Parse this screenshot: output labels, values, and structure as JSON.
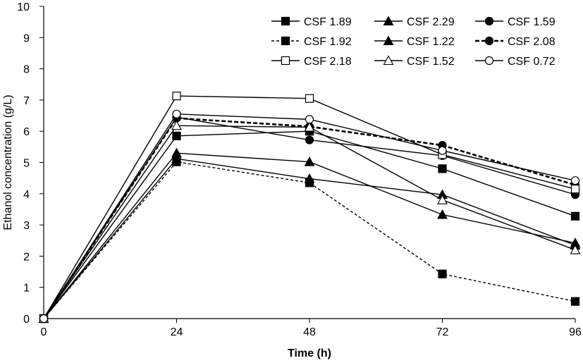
{
  "chart_data": {
    "type": "line",
    "xlabel": "Time (h)",
    "ylabel": "Ethanol concentration (g/L)",
    "xlim": [
      0,
      96
    ],
    "ylim": [
      0,
      10
    ],
    "x": [
      0,
      24,
      48,
      72,
      96
    ],
    "xticks": [
      "0",
      "24",
      "48",
      "72",
      "96"
    ],
    "yticks": [
      "0",
      "1",
      "2",
      "3",
      "4",
      "5",
      "6",
      "7",
      "8",
      "9",
      "10"
    ],
    "grid": false,
    "legend_position": "top-right",
    "series": [
      {
        "name": "CSF 1.89",
        "marker": "square-filled",
        "dash": "solid",
        "values": [
          0,
          5.85,
          6.0,
          4.8,
          3.28
        ]
      },
      {
        "name": "CSF 2.29",
        "marker": "triangle-filled",
        "dash": "solid",
        "values": [
          0,
          5.3,
          5.02,
          3.33,
          2.42
        ]
      },
      {
        "name": "CSF 1.59",
        "marker": "circle-filled",
        "dash": "solid",
        "values": [
          0,
          6.45,
          5.72,
          5.22,
          3.97
        ]
      },
      {
        "name": "CSF 1.92",
        "marker": "square-filled",
        "dash": "dashed",
        "values": [
          0,
          5.02,
          4.35,
          1.43,
          0.55
        ]
      },
      {
        "name": "CSF 1.22",
        "marker": "triangle-filled",
        "dash": "solid",
        "values": [
          0,
          5.12,
          4.48,
          3.97,
          2.35
        ]
      },
      {
        "name": "CSF 2.08",
        "marker": "circle-filled",
        "dash": "dashed-bold",
        "values": [
          0,
          6.42,
          6.15,
          5.55,
          4.28
        ]
      },
      {
        "name": "CSF 2.18",
        "marker": "square-open",
        "dash": "solid",
        "values": [
          0,
          7.13,
          7.05,
          5.25,
          4.15
        ]
      },
      {
        "name": "CSF 1.52",
        "marker": "triangle-open",
        "dash": "solid",
        "values": [
          0,
          6.18,
          6.13,
          3.8,
          2.2
        ]
      },
      {
        "name": "CSF 0.72",
        "marker": "circle-open",
        "dash": "solid",
        "values": [
          0,
          6.55,
          6.38,
          5.38,
          4.42
        ]
      }
    ]
  }
}
